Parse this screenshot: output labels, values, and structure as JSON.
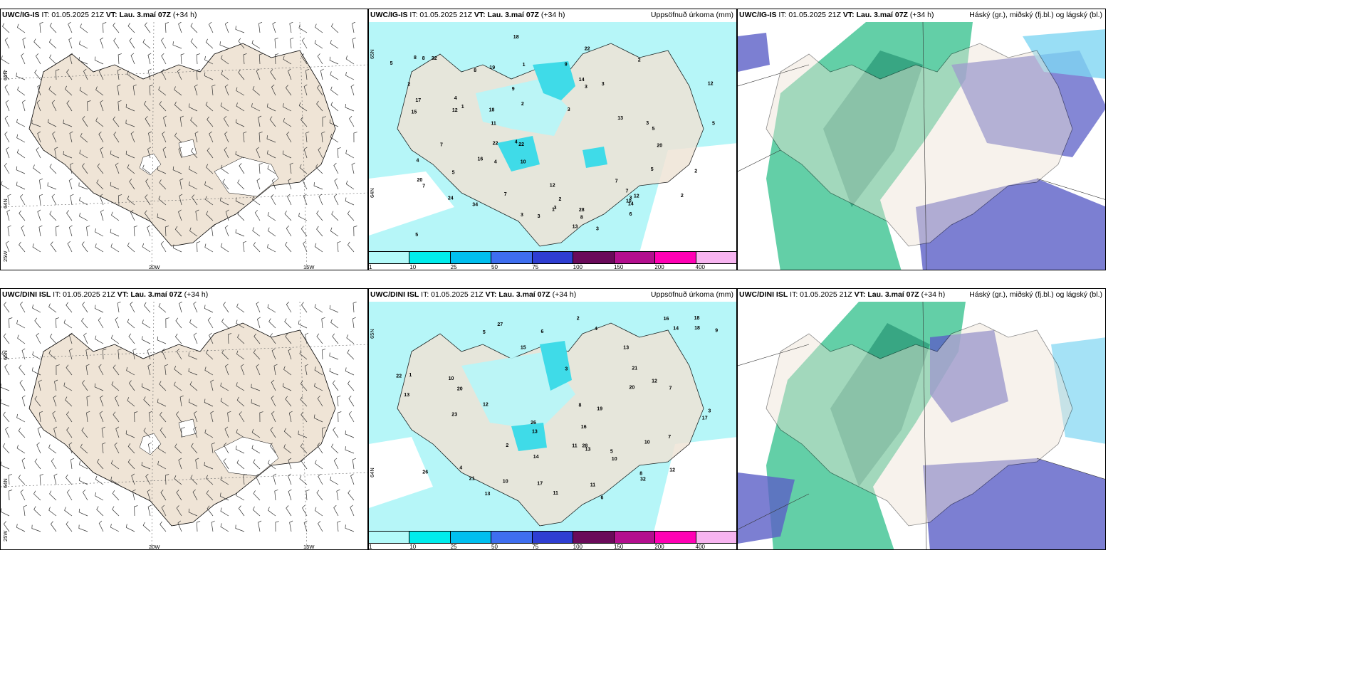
{
  "top": {
    "wind": {
      "model": "UWC/IG-IS",
      "it": "IT: 01.05.2025 21Z",
      "vt_label": "VT:",
      "vt": "Lau. 3.maí 07Z",
      "offset": "(+34 h)",
      "lat1": "65N",
      "lat2": "64N",
      "lon1": "20W",
      "lon2": "15W",
      "lonw": "25W"
    },
    "precip": {
      "model": "UWC/IG-IS",
      "it": "IT: 01.05.2025 21Z",
      "vt_label": "VT:",
      "vt": "Lau. 3.maí 07Z",
      "offset": "(+34 h)",
      "title": "Uppsöfnuð úrkoma (mm)",
      "lat1": "65N",
      "lat2": "64N"
    },
    "cloud": {
      "model": "UWC/IG-IS",
      "it": "IT: 01.05.2025 21Z",
      "vt_label": "VT:",
      "vt": "Lau. 3.maí 07Z",
      "offset": "(+34 h)",
      "title": "Háský (gr.), miðský (fj.bl.) og lágský (bl.)"
    }
  },
  "bottom": {
    "wind": {
      "model": "UWC/DINI ISL",
      "it": "IT: 01.05.2025 21Z",
      "vt_label": "VT:",
      "vt": "Lau. 3.maí 07Z",
      "offset": "(+34 h)",
      "lat1": "65N",
      "lat2": "64N",
      "lon1": "20W",
      "lon2": "15W",
      "lonw": "25W"
    },
    "precip": {
      "model": "UWC/DINI ISL",
      "it": "IT: 01.05.2025 21Z",
      "vt_label": "VT:",
      "vt": "Lau. 3.maí 07Z",
      "offset": "(+34 h)",
      "title": "Uppsöfnuð úrkoma (mm)",
      "lat1": "65N",
      "lat2": "64N"
    },
    "cloud": {
      "model": "UWC/DINI ISL",
      "it": "IT: 01.05.2025 21Z",
      "vt_label": "VT:",
      "vt": "Lau. 3.maí 07Z",
      "offset": "(+34 h)",
      "title": "Háský (gr.), miðský (fj.bl.) og lágský (bl.)"
    }
  },
  "legend": {
    "ticks": [
      "1",
      "10",
      "25",
      "50",
      "75",
      "100",
      "150",
      "200",
      "400"
    ],
    "colors": [
      "#b3fafa",
      "#00ecec",
      "#00bfef",
      "#3e6ef0",
      "#2e3ed2",
      "#6a0a5a",
      "#b30f8e",
      "#ff00b4",
      "#f7b4f0"
    ]
  },
  "colors": {
    "land": "#efe4d6",
    "precip_light": "#b6f6f8",
    "precip_mid": "#3fdbe8",
    "cloud_high": "#2fbf8a",
    "cloud_mid": "#5b5fc7",
    "cloud_low": "#7fd6f2"
  },
  "precip_values_top": [
    "3",
    "2",
    "3",
    "5",
    "5",
    "7",
    "3",
    "4",
    "3",
    "4",
    "5",
    "2",
    "3",
    "3",
    "2",
    "8",
    "7",
    "3",
    "2",
    "5",
    "32",
    "20",
    "12",
    "11",
    "28",
    "34",
    "22",
    "13",
    "19",
    "18",
    "8",
    "7",
    "5",
    "12",
    "10",
    "9",
    "8",
    "12",
    "22",
    "16",
    "5",
    "24",
    "22",
    "20",
    "15",
    "14",
    "17",
    "10",
    "18",
    "1",
    "1",
    "2",
    "4",
    "13",
    "12",
    "7",
    "4",
    "2",
    "3",
    "14",
    "6",
    "3",
    "1",
    "8",
    "9",
    "7"
  ],
  "precip_values_bottom": [
    "6",
    "5",
    "4",
    "10",
    "12",
    "11",
    "17",
    "12",
    "13",
    "21",
    "26",
    "22",
    "26",
    "28",
    "20",
    "16",
    "13",
    "14",
    "10",
    "7",
    "8",
    "13",
    "13",
    "32",
    "19",
    "21",
    "23",
    "20",
    "11",
    "15",
    "10",
    "18",
    "13",
    "10",
    "27",
    "17",
    "2",
    "1",
    "3",
    "5",
    "6",
    "8",
    "9",
    "12",
    "4",
    "7",
    "11",
    "14",
    "16",
    "18",
    "2",
    "3"
  ]
}
